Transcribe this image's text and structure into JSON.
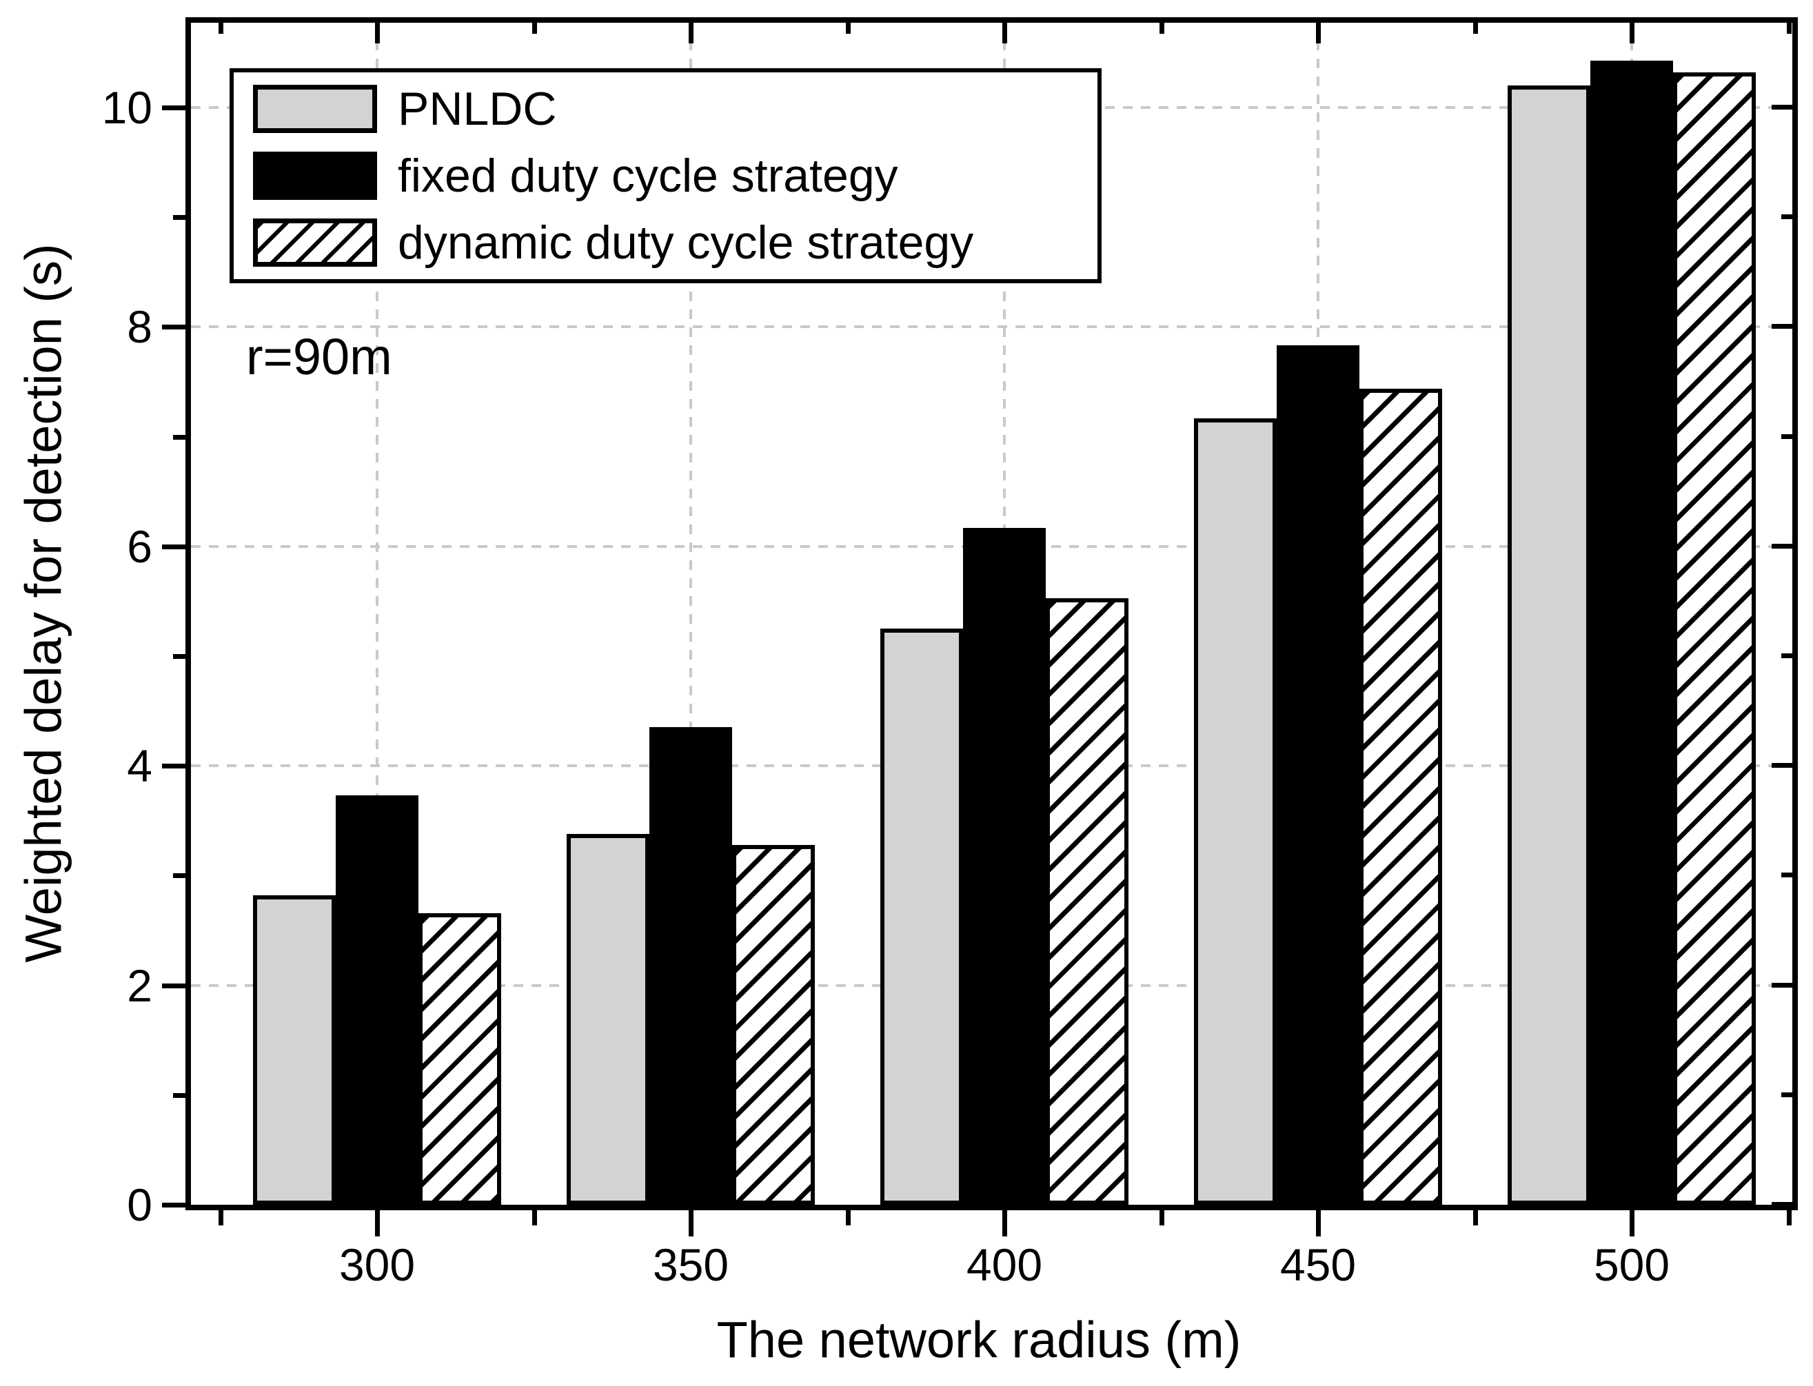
{
  "figure": {
    "y_axis": {
      "title": "Weighted delay for detection (s)",
      "tick_values": [
        0,
        2,
        4,
        6,
        8,
        10
      ],
      "tick_labels": [
        "0",
        "2",
        "4",
        "6",
        "8",
        "10"
      ],
      "minor_tick_values": [
        1,
        3,
        5,
        7,
        9
      ],
      "grid_values": [
        2,
        4,
        6,
        8,
        10
      ]
    },
    "x_axis": {
      "title": "The network radius (m)",
      "tick_labels": [
        "300",
        "350",
        "400",
        "450",
        "500"
      ]
    },
    "annotation": "r=90m",
    "legend": [
      {
        "label": "PNLDC",
        "style": "gray"
      },
      {
        "label": "fixed duty cycle strategy",
        "style": "black"
      },
      {
        "label": "dynamic duty cycle strategy",
        "style": "hatch"
      }
    ],
    "colors": {
      "bar_gray": "#d3d3d3",
      "bar_black": "#000000",
      "hatch_line": "#000000",
      "grid": "#c9c9c9",
      "axis": "#000000",
      "background": "#ffffff"
    }
  },
  "chart_data": {
    "type": "bar",
    "title": "",
    "categories": [
      300,
      350,
      400,
      450,
      500
    ],
    "series": [
      {
        "name": "PNLDC",
        "values": [
          2.82,
          3.38,
          5.25,
          7.17,
          10.2
        ]
      },
      {
        "name": "fixed duty cycle strategy",
        "values": [
          3.73,
          4.35,
          6.17,
          7.83,
          10.43
        ]
      },
      {
        "name": "dynamic duty cycle strategy",
        "values": [
          2.66,
          3.28,
          5.53,
          7.44,
          10.32
        ]
      }
    ],
    "xlabel": "The network radius (m)",
    "ylabel": "Weighted delay for detection (s)",
    "ylim": [
      0,
      10.77
    ],
    "grid": "dashed, both axes at major ticks",
    "legend_position": "upper left",
    "annotation": "r=90m"
  }
}
